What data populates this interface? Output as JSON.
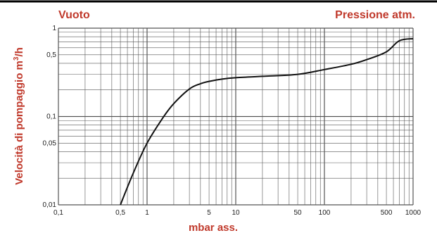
{
  "chart_data": {
    "type": "line",
    "title_left": "Vuoto",
    "title_right": "Pressione atm.",
    "xlabel": "mbar ass.",
    "ylabel_main": "Velocità di pompaggio m",
    "ylabel_sup": "3",
    "ylabel_tail": "/h",
    "x_scale": "log",
    "y_scale": "log",
    "xlim": [
      0.1,
      1000
    ],
    "ylim": [
      0.01,
      1
    ],
    "x_ticks": [
      {
        "value": 0.1,
        "label": "0,1"
      },
      {
        "value": 0.5,
        "label": "0,5"
      },
      {
        "value": 1,
        "label": "1"
      },
      {
        "value": 5,
        "label": "5"
      },
      {
        "value": 10,
        "label": "10"
      },
      {
        "value": 50,
        "label": "50"
      },
      {
        "value": 100,
        "label": "100"
      },
      {
        "value": 500,
        "label": "500"
      },
      {
        "value": 1000,
        "label": "1000"
      }
    ],
    "y_ticks": [
      {
        "value": 1,
        "label": "1"
      },
      {
        "value": 0.5,
        "label": "0,5"
      },
      {
        "value": 0.1,
        "label": "0,1"
      },
      {
        "value": 0.05,
        "label": "0,05"
      },
      {
        "value": 0.01,
        "label": "0,01"
      }
    ],
    "grid": true,
    "series": [
      {
        "x": [
          0.5,
          0.7,
          1,
          1.5,
          2,
          3,
          4,
          5,
          7,
          10,
          20,
          50,
          100,
          200,
          300,
          500,
          700,
          1000
        ],
        "y": [
          0.01,
          0.023,
          0.05,
          0.096,
          0.14,
          0.205,
          0.235,
          0.25,
          0.265,
          0.275,
          0.285,
          0.3,
          0.34,
          0.39,
          0.44,
          0.54,
          0.72,
          0.76
        ]
      }
    ],
    "colors": {
      "axis_text": "#c0392b",
      "line": "#111111",
      "grid": "#555555"
    }
  }
}
